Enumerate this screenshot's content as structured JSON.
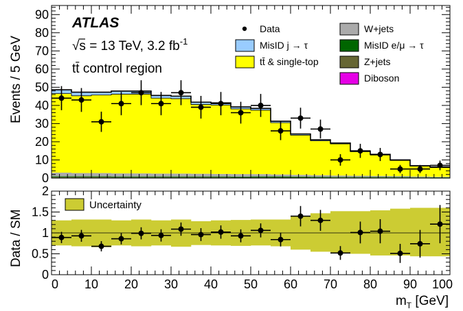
{
  "chart_data": [
    {
      "type": "bar",
      "panel": "main",
      "experiment": "ATLAS",
      "energy_lumi": "√s = 13 TeV, 3.2 fb",
      "lumi_exponent": "-1",
      "region": "tt̄ control region",
      "ylabel": "Events / 5 GeV",
      "ylim": [
        0,
        95
      ],
      "yticks_major": [
        0,
        10,
        20,
        30,
        40,
        50,
        60,
        70,
        80,
        90
      ],
      "xlim": [
        0,
        100
      ],
      "x_bin_edges": [
        0,
        5,
        10,
        15,
        20,
        25,
        30,
        35,
        40,
        45,
        50,
        55,
        60,
        65,
        70,
        75,
        80,
        85,
        90,
        95,
        100
      ],
      "stack_series": [
        {
          "name": "Diboson",
          "color": "#e600e6",
          "values": [
            0.1,
            0.1,
            0.1,
            0.1,
            0.1,
            0.1,
            0.1,
            0.1,
            0.1,
            0.1,
            0.1,
            0.1,
            0.1,
            0.1,
            0.1,
            0.1,
            0.1,
            0.1,
            0.1,
            0.1
          ]
        },
        {
          "name": "Z+jets",
          "color": "#666633",
          "values": [
            0.5,
            0.5,
            0.5,
            0.4,
            0.4,
            0.4,
            0.4,
            0.4,
            0.4,
            0.3,
            0.3,
            0.3,
            0.3,
            0.2,
            0.2,
            0.2,
            0.2,
            0.2,
            0.2,
            0.1
          ]
        },
        {
          "name": "MisID e/μ → τ",
          "color": "#006600",
          "values": [
            0.4,
            0.4,
            0.4,
            0.4,
            0.4,
            0.4,
            0.4,
            0.4,
            0.4,
            0.4,
            0.5,
            0.5,
            0.4,
            0.4,
            0.3,
            0.3,
            0.3,
            0.3,
            0.2,
            0.2
          ]
        },
        {
          "name": "W+jets",
          "color": "#aaaaaa",
          "values": [
            2.0,
            1.8,
            1.8,
            1.7,
            1.7,
            1.6,
            1.6,
            1.5,
            1.4,
            1.4,
            1.3,
            1.1,
            1.0,
            0.9,
            0.8,
            0.7,
            0.6,
            0.5,
            0.4,
            0.3
          ]
        },
        {
          "name": "tt̄ & single-top",
          "color": "#ffff00",
          "values": [
            43.5,
            42.5,
            42.9,
            43.6,
            43.6,
            41.5,
            41.2,
            38.1,
            37.9,
            35.9,
            35.2,
            28.5,
            21.8,
            18.9,
            17.4,
            13.2,
            11.5,
            8.6,
            5.7,
            5.1
          ]
        },
        {
          "name": "MisID j → τ",
          "color": "#99ccff",
          "values": [
            2.1,
            2.0,
            1.6,
            1.7,
            1.7,
            1.5,
            1.4,
            1.3,
            1.2,
            1.1,
            1.0,
            0.8,
            0.7,
            0.6,
            0.5,
            0.4,
            0.4,
            0.3,
            0.2,
            0.3
          ]
        }
      ],
      "data": {
        "name": "Data",
        "x": [
          2.5,
          7.5,
          12.5,
          17.5,
          22.5,
          27.5,
          32.5,
          37.5,
          42.5,
          47.5,
          52.5,
          57.5,
          62.5,
          67.5,
          72.5,
          77.5,
          82.5,
          87.5,
          92.5,
          97.5
        ],
        "y": [
          44,
          43,
          31,
          41,
          47,
          41,
          47,
          39,
          41,
          36,
          40,
          26,
          33,
          27,
          10,
          15,
          13,
          5,
          5,
          7
        ]
      },
      "legend_placement": "top-right"
    },
    {
      "type": "scatter",
      "panel": "ratio",
      "ylabel": "Data / SM",
      "xlabel": "m",
      "xlabel_sub": "T",
      "xlabel_unit": "[GeV]",
      "ylim": [
        0,
        2
      ],
      "yticks_labels": [
        "0",
        "0.5",
        "1",
        "1.5",
        "2"
      ],
      "xlim": [
        0,
        100
      ],
      "xticks_labels": [
        "0",
        "10",
        "20",
        "30",
        "40",
        "50",
        "60",
        "70",
        "80",
        "90",
        "100"
      ],
      "band": {
        "name": "Uncertainty",
        "color": "#cccc33",
        "lower": [
          0.7,
          0.68,
          0.66,
          0.7,
          0.68,
          0.7,
          0.67,
          0.71,
          0.7,
          0.69,
          0.7,
          0.68,
          0.6,
          0.55,
          0.52,
          0.5,
          0.46,
          0.46,
          0.44,
          0.44
        ],
        "upper": [
          1.3,
          1.32,
          1.32,
          1.3,
          1.32,
          1.3,
          1.32,
          1.28,
          1.3,
          1.31,
          1.32,
          1.32,
          1.4,
          1.47,
          1.52,
          1.52,
          1.54,
          1.58,
          1.6,
          1.6
        ]
      },
      "ratio": {
        "x": [
          2.5,
          7.5,
          12.5,
          17.5,
          22.5,
          27.5,
          32.5,
          37.5,
          42.5,
          47.5,
          52.5,
          57.5,
          62.5,
          67.5,
          72.5,
          77.5,
          82.5,
          87.5,
          92.5,
          97.5
        ],
        "y": [
          0.89,
          0.93,
          0.68,
          0.86,
          0.99,
          0.94,
          1.09,
          0.96,
          1.02,
          0.93,
          1.06,
          0.84,
          1.4,
          1.3,
          0.52,
          1.01,
          1.04,
          0.51,
          0.74,
          1.21
        ]
      },
      "reference_line": 1
    }
  ]
}
